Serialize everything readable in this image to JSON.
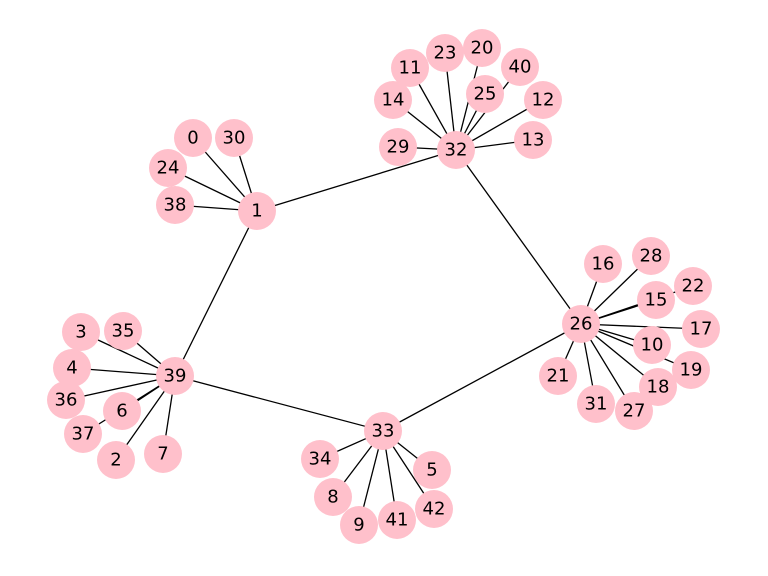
{
  "graph": {
    "node_color": "#ffc0cb",
    "edge_color": "#000000",
    "nodes": [
      "0",
      "1",
      "2",
      "3",
      "4",
      "5",
      "6",
      "7",
      "8",
      "9",
      "10",
      "11",
      "12",
      "13",
      "14",
      "15",
      "16",
      "17",
      "18",
      "19",
      "20",
      "21",
      "22",
      "23",
      "24",
      "25",
      "26",
      "27",
      "28",
      "29",
      "30",
      "31",
      "32",
      "33",
      "34",
      "35",
      "36",
      "37",
      "38",
      "39",
      "40",
      "41",
      "42"
    ],
    "edges": [
      [
        "1",
        "32"
      ],
      [
        "1",
        "39"
      ],
      [
        "32",
        "26"
      ],
      [
        "39",
        "33"
      ],
      [
        "33",
        "26"
      ],
      [
        "1",
        "0"
      ],
      [
        "1",
        "30"
      ],
      [
        "1",
        "24"
      ],
      [
        "1",
        "38"
      ],
      [
        "32",
        "29"
      ],
      [
        "32",
        "14"
      ],
      [
        "32",
        "11"
      ],
      [
        "32",
        "23"
      ],
      [
        "32",
        "20"
      ],
      [
        "32",
        "25"
      ],
      [
        "32",
        "40"
      ],
      [
        "32",
        "12"
      ],
      [
        "32",
        "13"
      ],
      [
        "26",
        "16"
      ],
      [
        "26",
        "28"
      ],
      [
        "26",
        "22"
      ],
      [
        "26",
        "15"
      ],
      [
        "26",
        "17"
      ],
      [
        "26",
        "10"
      ],
      [
        "26",
        "19"
      ],
      [
        "26",
        "18"
      ],
      [
        "26",
        "27"
      ],
      [
        "26",
        "31"
      ],
      [
        "26",
        "21"
      ],
      [
        "39",
        "3"
      ],
      [
        "39",
        "35"
      ],
      [
        "39",
        "4"
      ],
      [
        "39",
        "36"
      ],
      [
        "39",
        "6"
      ],
      [
        "39",
        "37"
      ],
      [
        "39",
        "2"
      ],
      [
        "39",
        "7"
      ],
      [
        "33",
        "34"
      ],
      [
        "33",
        "8"
      ],
      [
        "33",
        "9"
      ],
      [
        "33",
        "41"
      ],
      [
        "33",
        "42"
      ],
      [
        "33",
        "5"
      ]
    ]
  }
}
